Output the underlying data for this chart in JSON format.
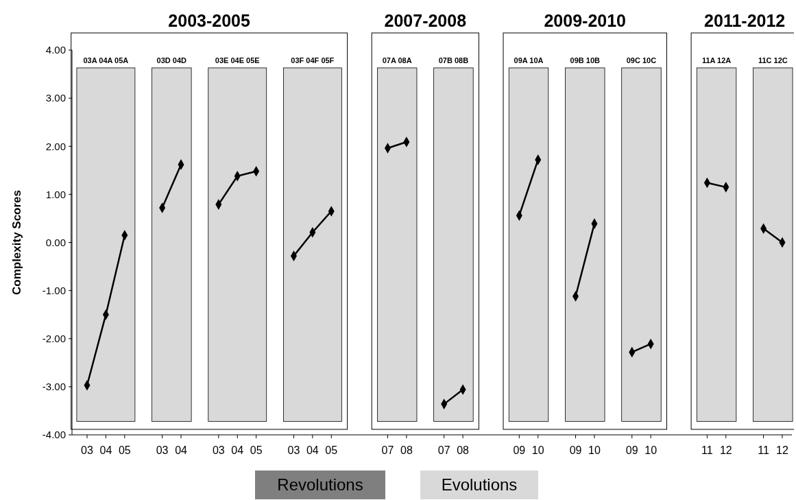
{
  "chart_data": {
    "type": "line",
    "ylabel": "Complexity Scores",
    "categories": [
      "03",
      "04",
      "05",
      null,
      "03",
      "04",
      null,
      "03",
      "04",
      "05",
      null,
      "03",
      "04",
      "05",
      null,
      null,
      "07",
      "08",
      null,
      "07",
      "08",
      null,
      null,
      "09",
      "10",
      null,
      "09",
      "10",
      null,
      "09",
      "10",
      null,
      null,
      "11",
      "12",
      null,
      "11",
      "12"
    ],
    "ylim": [
      -4,
      4
    ],
    "yticks": [
      {
        "value": -4,
        "label": "-4.00"
      },
      {
        "value": -3,
        "label": "-3.00"
      },
      {
        "value": -2,
        "label": "-2.00"
      },
      {
        "value": -1,
        "label": "-1.00"
      },
      {
        "value": 0,
        "label": "0.00"
      },
      {
        "value": 1,
        "label": "1.00"
      },
      {
        "value": 2,
        "label": "2.00"
      },
      {
        "value": 3,
        "label": "3.00"
      },
      {
        "value": 4,
        "label": "4.00"
      }
    ],
    "marker": "diamond",
    "line_style": "solid",
    "series": [
      {
        "color": "#000000",
        "values": [
          -2.97,
          -1.5,
          0.15,
          null,
          null,
          null,
          null,
          null,
          null,
          null,
          null,
          null,
          null,
          null,
          null,
          null,
          null,
          null,
          null,
          null,
          null,
          null,
          null,
          null,
          null,
          null,
          null,
          null,
          null,
          null,
          null,
          null,
          null,
          null,
          null,
          null,
          null,
          null
        ]
      },
      {
        "color": "#000000",
        "values": [
          null,
          null,
          null,
          null,
          0.72,
          1.62,
          null,
          null,
          null,
          null,
          null,
          null,
          null,
          null,
          null,
          null,
          null,
          null,
          null,
          null,
          null,
          null,
          null,
          null,
          null,
          null,
          null,
          null,
          null,
          null,
          null,
          null,
          null,
          null,
          null,
          null,
          null,
          null
        ]
      },
      {
        "color": "#000000",
        "values": [
          null,
          null,
          null,
          null,
          null,
          null,
          null,
          0.79,
          1.38,
          1.48,
          null,
          null,
          null,
          null,
          null,
          null,
          null,
          null,
          null,
          null,
          null,
          null,
          null,
          null,
          null,
          null,
          null,
          null,
          null,
          null,
          null,
          null,
          null,
          null,
          null,
          null,
          null,
          null
        ]
      },
      {
        "color": "#000000",
        "values": [
          null,
          null,
          null,
          null,
          null,
          null,
          null,
          null,
          null,
          null,
          null,
          -0.28,
          0.21,
          0.65,
          null,
          null,
          null,
          null,
          null,
          null,
          null,
          null,
          null,
          null,
          null,
          null,
          null,
          null,
          null,
          null,
          null,
          null,
          null,
          null,
          null,
          null,
          null,
          null
        ]
      },
      {
        "color": "#000000",
        "values": [
          null,
          null,
          null,
          null,
          null,
          null,
          null,
          null,
          null,
          null,
          null,
          null,
          null,
          null,
          null,
          null,
          1.96,
          2.09,
          null,
          null,
          null,
          null,
          null,
          null,
          null,
          null,
          null,
          null,
          null,
          null,
          null,
          null,
          null,
          null,
          null,
          null,
          null,
          null
        ]
      },
      {
        "color": "#000000",
        "values": [
          null,
          null,
          null,
          null,
          null,
          null,
          null,
          null,
          null,
          null,
          null,
          null,
          null,
          null,
          null,
          null,
          null,
          null,
          null,
          -3.36,
          -3.06,
          null,
          null,
          null,
          null,
          null,
          null,
          null,
          null,
          null,
          null,
          null,
          null,
          null,
          null,
          null,
          null,
          null
        ]
      },
      {
        "color": "#000000",
        "values": [
          null,
          null,
          null,
          null,
          null,
          null,
          null,
          null,
          null,
          null,
          null,
          null,
          null,
          null,
          null,
          null,
          null,
          null,
          null,
          null,
          null,
          null,
          null,
          0.56,
          1.72,
          null,
          null,
          null,
          null,
          null,
          null,
          null,
          null,
          null,
          null,
          null,
          null,
          null
        ]
      },
      {
        "color": "#000000",
        "values": [
          null,
          null,
          null,
          null,
          null,
          null,
          null,
          null,
          null,
          null,
          null,
          null,
          null,
          null,
          null,
          null,
          null,
          null,
          null,
          null,
          null,
          null,
          null,
          null,
          null,
          null,
          -1.12,
          0.39,
          null,
          null,
          null,
          null,
          null,
          null,
          null,
          null,
          null,
          null
        ]
      },
      {
        "color": "#000000",
        "values": [
          null,
          null,
          null,
          null,
          null,
          null,
          null,
          null,
          null,
          null,
          null,
          null,
          null,
          null,
          null,
          null,
          null,
          null,
          null,
          null,
          null,
          null,
          null,
          null,
          null,
          null,
          null,
          null,
          null,
          -2.28,
          -2.11,
          null,
          null,
          null,
          null,
          null,
          null,
          null
        ]
      },
      {
        "color": "#000000",
        "values": [
          null,
          null,
          null,
          null,
          null,
          null,
          null,
          null,
          null,
          null,
          null,
          null,
          null,
          null,
          null,
          null,
          null,
          null,
          null,
          null,
          null,
          null,
          null,
          null,
          null,
          null,
          null,
          null,
          null,
          null,
          null,
          null,
          null,
          1.24,
          1.15,
          null,
          null,
          null
        ]
      },
      {
        "color": "#000000",
        "values": [
          null,
          null,
          null,
          null,
          null,
          null,
          null,
          null,
          null,
          null,
          null,
          null,
          null,
          null,
          null,
          null,
          null,
          null,
          null,
          null,
          null,
          null,
          null,
          null,
          null,
          null,
          null,
          null,
          null,
          null,
          null,
          null,
          null,
          null,
          null,
          null,
          0.29,
          0.0
        ]
      }
    ],
    "annotations": [
      "2003-2005",
      "2007-2008",
      "2009-2010",
      "2011-2012",
      "03A  04A  05A",
      "03D  04D",
      "03E  04E  05E",
      "03F  04F  05F",
      "07A  08A",
      "07B  08B",
      "09A  10A",
      "09B  10B",
      "09C  10C",
      "11A  12A",
      "11C  12C",
      "Revolutions",
      "Evolutions"
    ]
  }
}
